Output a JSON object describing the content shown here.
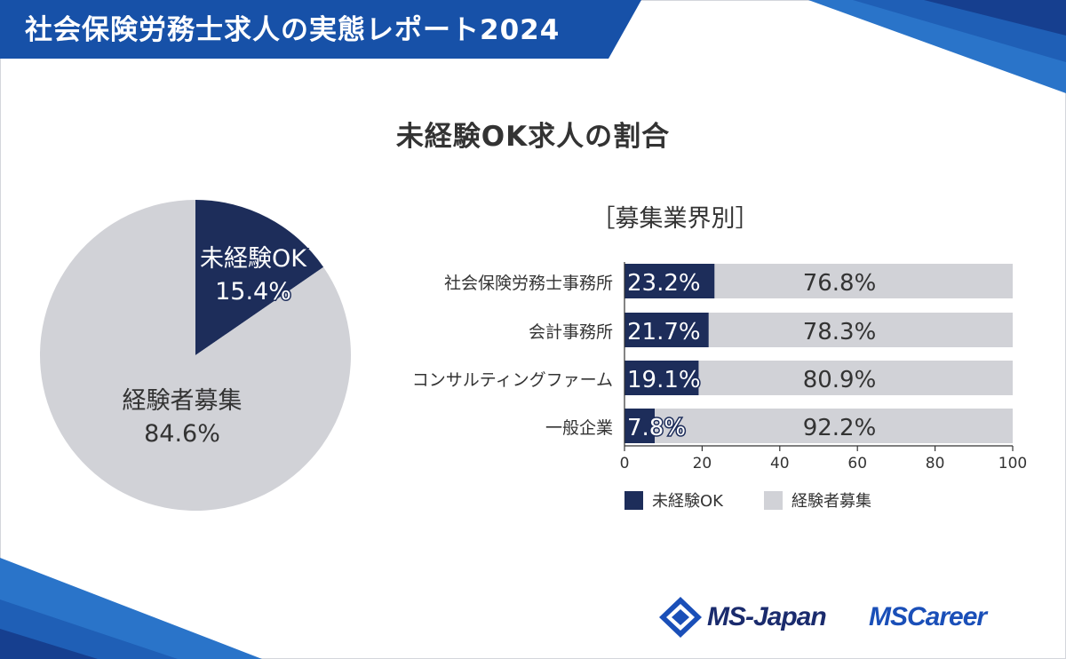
{
  "header": {
    "title": "社会保険労務士求人の実態レポート2024"
  },
  "chart_data": [
    {
      "type": "pie",
      "title": "未経験OK求人の割合",
      "slices": [
        {
          "label": "未経験OK",
          "value": 15.4,
          "display": "15.4%",
          "color": "#1d2d5a"
        },
        {
          "label": "経験者募集",
          "value": 84.6,
          "display": "84.6%",
          "color": "#d1d2d7"
        }
      ]
    },
    {
      "type": "bar",
      "stacked": true,
      "orientation": "horizontal",
      "subtitle": "［募集業界別］",
      "categories": [
        "社会保険労務士事務所",
        "会計事務所",
        "コンサルティングファーム",
        "一般企業"
      ],
      "series": [
        {
          "name": "未経験OK",
          "values": [
            23.2,
            21.7,
            19.1,
            7.8
          ],
          "color": "#1d2d5a"
        },
        {
          "name": "経験者募集",
          "values": [
            76.8,
            78.3,
            80.9,
            92.2
          ],
          "color": "#d1d2d7"
        }
      ],
      "xlim": [
        0,
        100
      ],
      "xticks": [
        "0",
        "20",
        "40",
        "60",
        "80",
        "100"
      ],
      "legend_position": "bottom"
    }
  ],
  "brand": {
    "logo_1": "MS-Japan",
    "logo_2": "MSCareer"
  }
}
